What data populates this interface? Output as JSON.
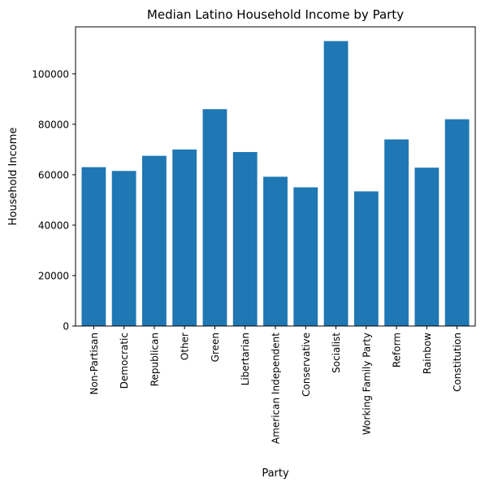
{
  "chart_data": {
    "type": "bar",
    "title": "Median Latino Household Income by Party",
    "xlabel": "Party",
    "ylabel": "Household Income",
    "categories": [
      "Non-Partisan",
      "Democratic",
      "Republican",
      "Other",
      "Green",
      "Libertarian",
      "American Independent",
      "Conservative",
      "Socialist",
      "Working Family Party",
      "Reform",
      "Rainbow",
      "Constitution"
    ],
    "values": [
      63000,
      61500,
      67500,
      70000,
      86000,
      69000,
      59200,
      55000,
      113000,
      53400,
      74000,
      62800,
      82000
    ],
    "ylim": [
      0,
      118650
    ],
    "yticks": [
      0,
      20000,
      40000,
      60000,
      80000,
      100000
    ],
    "ytick_labels": [
      "0",
      "20000",
      "40000",
      "60000",
      "80000",
      "100000"
    ],
    "bar_color": "#1f77b4",
    "grid": false,
    "legend": "none"
  }
}
